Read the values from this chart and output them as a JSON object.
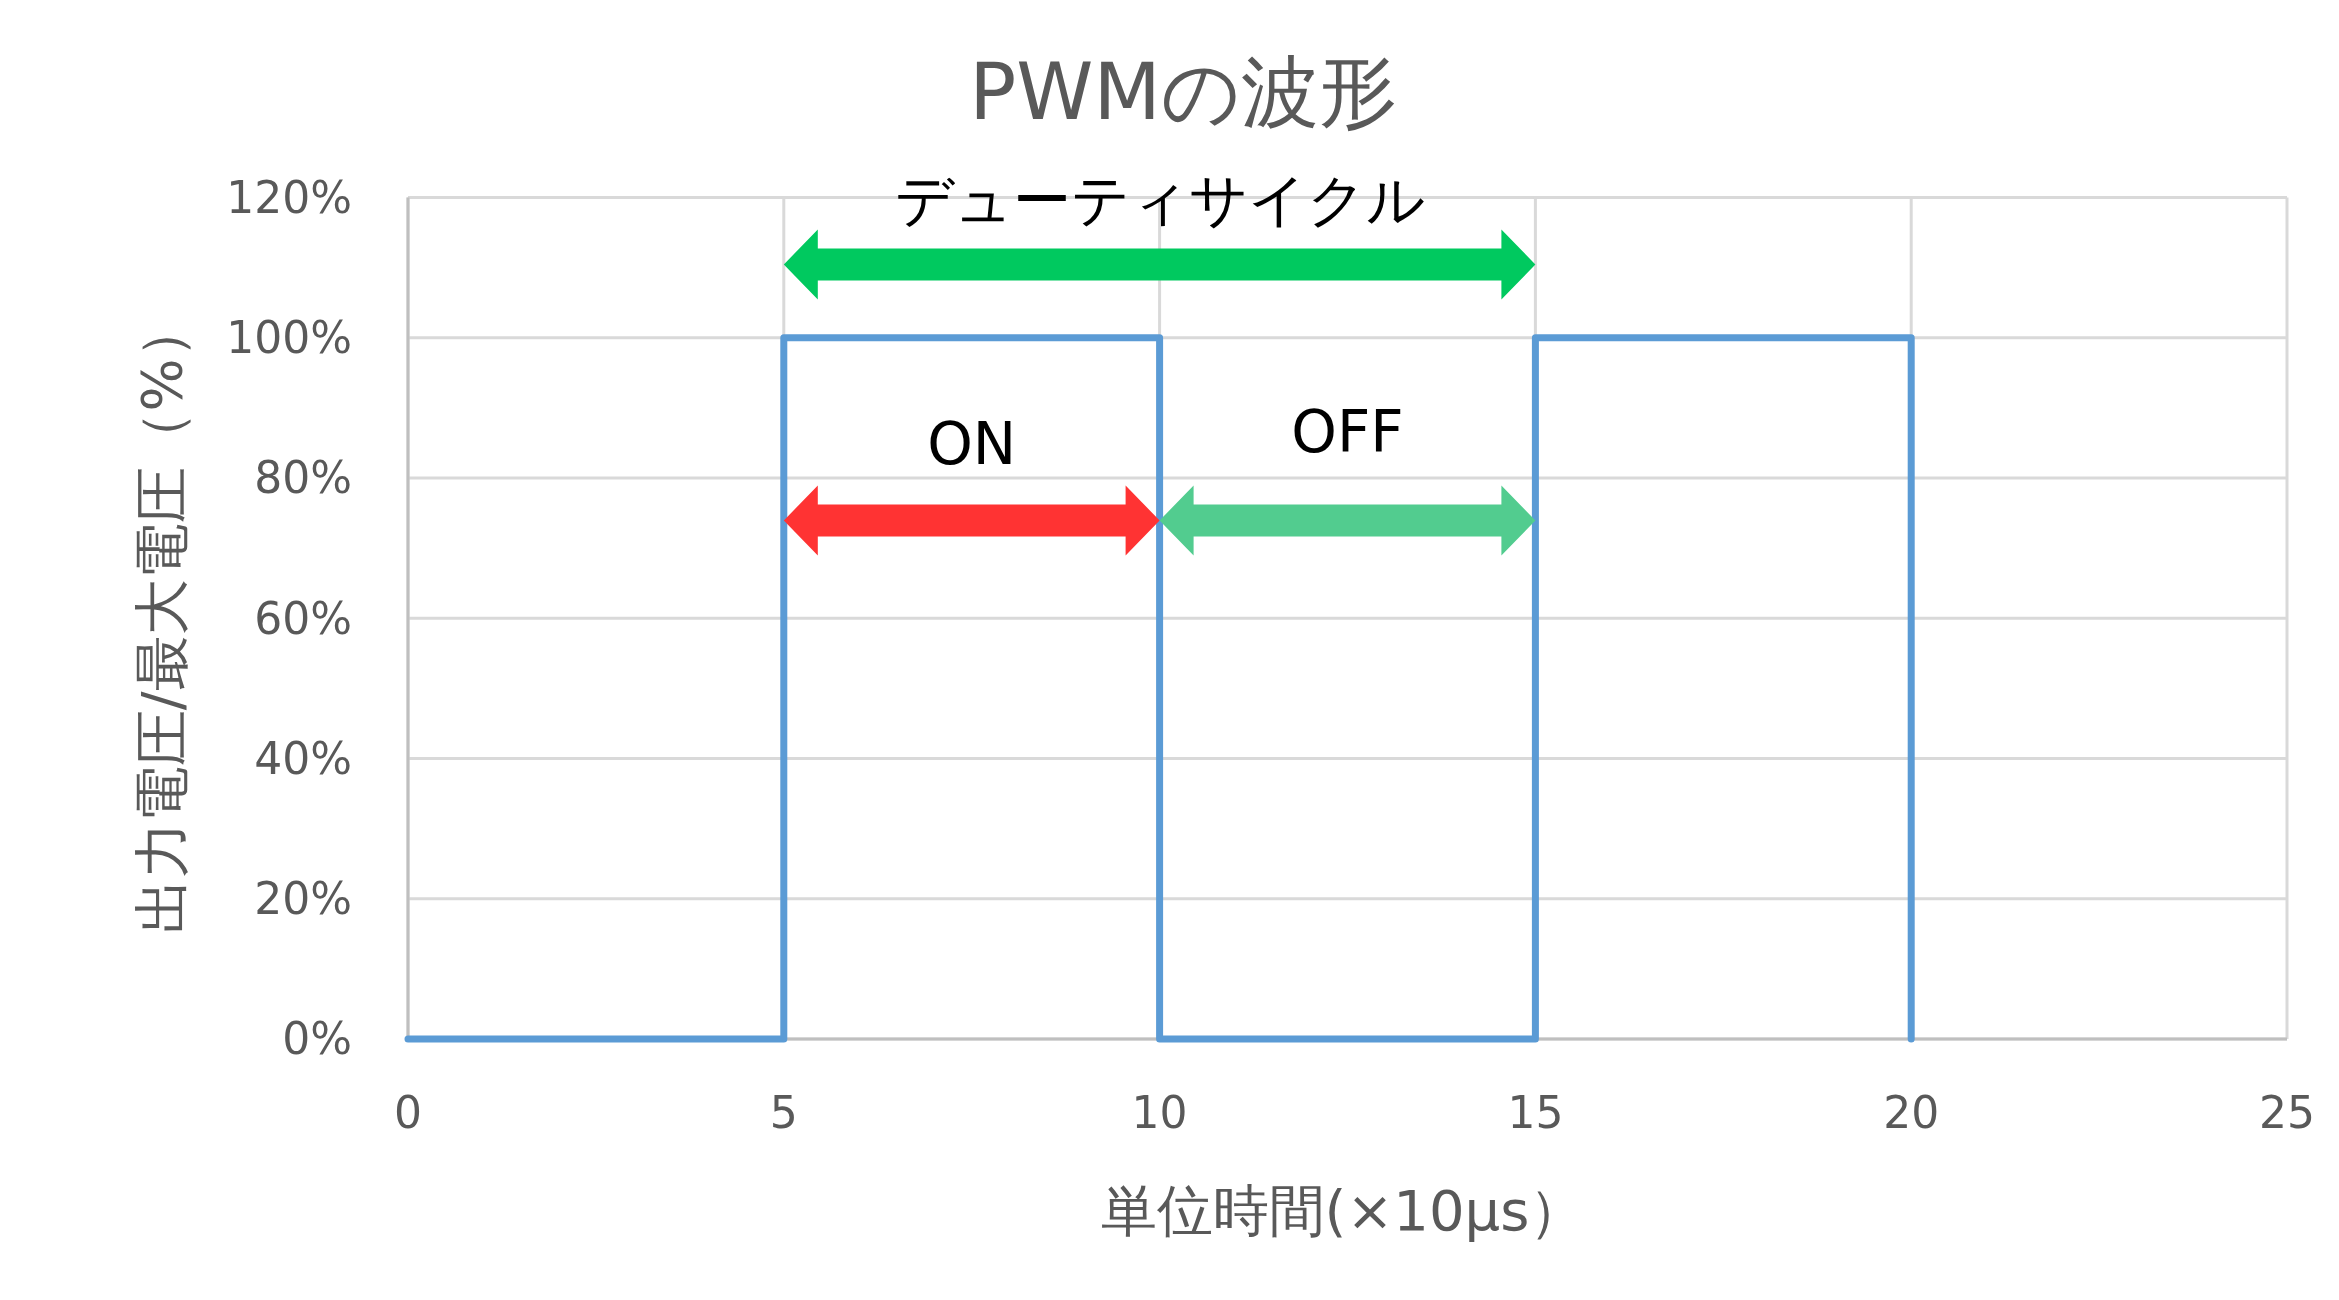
{
  "chart_data": {
    "type": "step",
    "title": "PWMの波形",
    "xlabel": "単位時間(×10μs）",
    "ylabel": "出力電圧/最大電圧（%）",
    "x": [
      0,
      5,
      10,
      15,
      20
    ],
    "series": [
      {
        "color": "#5b9bd5",
        "values": [
          0,
          100,
          0,
          100,
          0
        ]
      }
    ],
    "xlim": [
      0,
      25
    ],
    "xticks": [
      0,
      5,
      10,
      15,
      20,
      25
    ],
    "ylim": [
      0,
      120
    ],
    "yticks": [
      {
        "value": 0,
        "label": "0%"
      },
      {
        "value": 20,
        "label": "20%"
      },
      {
        "value": 40,
        "label": "40%"
      },
      {
        "value": 60,
        "label": "60%"
      },
      {
        "value": 80,
        "label": "80%"
      },
      {
        "value": 100,
        "label": "100%"
      },
      {
        "value": 120,
        "label": "120%"
      }
    ],
    "grid": true,
    "annotations": [
      "デューティサイクル",
      "ON",
      "OFF"
    ]
  }
}
